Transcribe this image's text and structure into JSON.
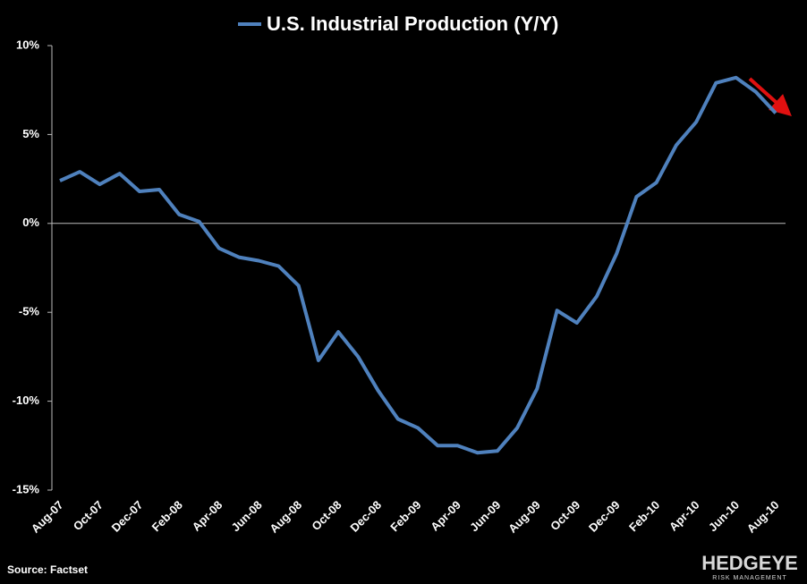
{
  "chart_data": {
    "type": "line",
    "categories": [
      "Aug-07",
      null,
      "Oct-07",
      null,
      "Dec-07",
      null,
      "Feb-08",
      null,
      "Apr-08",
      null,
      "Jun-08",
      null,
      "Aug-08",
      null,
      "Oct-08",
      null,
      "Dec-08",
      null,
      "Feb-09",
      null,
      "Apr-09",
      null,
      "Jun-09",
      null,
      "Aug-09",
      null,
      "Oct-09",
      null,
      "Dec-09",
      null,
      "Feb-10",
      null,
      "Apr-10",
      null,
      "Jun-10",
      null,
      "Aug-10"
    ],
    "series": [
      {
        "name": "U.S. Industrial Production (Y/Y)",
        "color": "#4f81bd",
        "values": [
          2.4,
          2.9,
          2.2,
          2.8,
          1.8,
          1.9,
          0.5,
          0.1,
          -1.4,
          -1.9,
          -2.1,
          -2.4,
          -3.5,
          -7.7,
          -6.1,
          -7.5,
          -9.4,
          -11.0,
          -11.5,
          -12.5,
          -12.5,
          -12.9,
          -12.8,
          -11.5,
          -9.3,
          -4.9,
          -5.6,
          -4.1,
          -1.7,
          1.5,
          2.3,
          4.4,
          5.7,
          7.9,
          8.2,
          7.4,
          6.2
        ]
      }
    ],
    "ylim": [
      -15,
      10
    ],
    "yticks": [
      {
        "value": -15,
        "label": "-15%"
      },
      {
        "value": -10,
        "label": "-10%"
      },
      {
        "value": -5,
        "label": "-5%"
      },
      {
        "value": 0,
        "label": "0%"
      },
      {
        "value": 5,
        "label": "5%"
      },
      {
        "value": 10,
        "label": "10%"
      }
    ],
    "grid": false,
    "source": "Source: Factset",
    "logo": "HEDGEYE",
    "logo_subtitle": "RISK MANAGEMENT"
  }
}
